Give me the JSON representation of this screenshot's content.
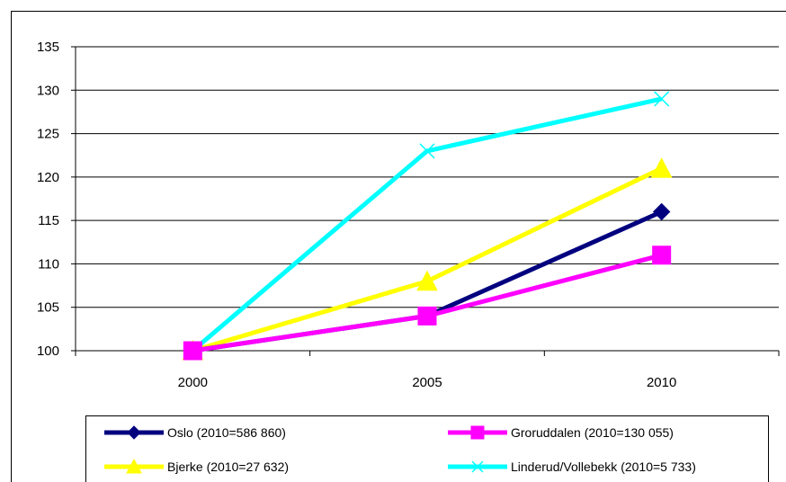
{
  "chart_data": {
    "type": "line",
    "categories": [
      "2000",
      "2005",
      "2010"
    ],
    "ylim": [
      100,
      135
    ],
    "yticks": [
      "100",
      "105",
      "110",
      "115",
      "120",
      "125",
      "130",
      "135"
    ],
    "grid": true,
    "legend_position": "bottom",
    "series": [
      {
        "name": "Oslo (2010=586  860)",
        "values": [
          100,
          104,
          116
        ],
        "color": "#00007f",
        "marker": "diamond"
      },
      {
        "name": "Groruddalen  (2010=130  055)",
        "values": [
          100,
          104,
          111
        ],
        "color": "#ff00ff",
        "marker": "square"
      },
      {
        "name": "Bjerke (2010=27  632)",
        "values": [
          100,
          108,
          121
        ],
        "color": "#ffff00",
        "marker": "triangle"
      },
      {
        "name": "Linderud/Vollebekk  (2010=5  733)",
        "values": [
          100,
          123,
          129
        ],
        "color": "#00ffff",
        "marker": "x"
      }
    ]
  }
}
